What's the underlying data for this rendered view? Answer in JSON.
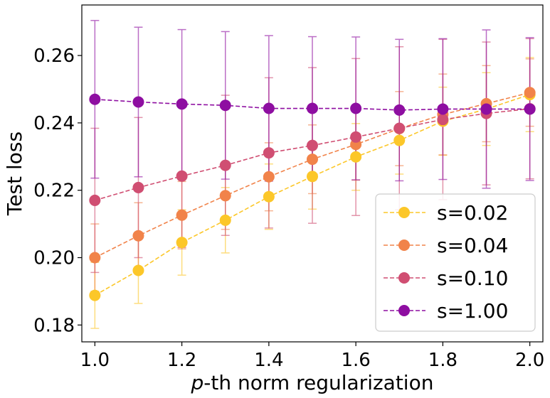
{
  "chart_data": {
    "type": "line",
    "title": "",
    "xlabel_italic": "p",
    "xlabel_rest": "-th norm regularization",
    "ylabel": "Test loss",
    "xlim": [
      0.97,
      2.03
    ],
    "ylim": [
      0.175,
      0.275
    ],
    "xticks": [
      1.0,
      1.2,
      1.4,
      1.6,
      1.8,
      2.0
    ],
    "xtick_labels": [
      "1.0",
      "1.2",
      "1.4",
      "1.6",
      "1.8",
      "2.0"
    ],
    "yticks": [
      0.18,
      0.2,
      0.22,
      0.24,
      0.26
    ],
    "ytick_labels": [
      "0.18",
      "0.20",
      "0.22",
      "0.24",
      "0.26"
    ],
    "legend_position": "lower-right",
    "x": [
      1.0,
      1.1,
      1.2,
      1.3,
      1.4,
      1.5,
      1.6,
      1.7,
      1.8,
      1.9,
      2.0
    ],
    "series": [
      {
        "name": "s=0.02",
        "color": "#fcc729",
        "values": [
          0.1888,
          0.1962,
          0.2045,
          0.2111,
          0.2181,
          0.2241,
          0.2299,
          0.2348,
          0.2405,
          0.2441,
          0.2484
        ],
        "errors": [
          0.0098,
          0.0098,
          0.0097,
          0.0097,
          0.0097,
          0.0097,
          0.0099,
          0.01,
          0.0101,
          0.0108,
          0.011
        ]
      },
      {
        "name": "s=0.04",
        "color": "#f1834a",
        "values": [
          0.2,
          0.2065,
          0.2126,
          0.2184,
          0.224,
          0.2292,
          0.2336,
          0.2383,
          0.2425,
          0.2457,
          0.249
        ],
        "errors": [
          0.01,
          0.0098,
          0.01,
          0.01,
          0.0101,
          0.0102,
          0.0106,
          0.011,
          0.012,
          0.0113,
          0.01
        ]
      },
      {
        "name": "s=0.10",
        "color": "#d04e72",
        "values": [
          0.217,
          0.2208,
          0.2242,
          0.2274,
          0.2311,
          0.2333,
          0.2358,
          0.2384,
          0.241,
          0.2428,
          0.2442
        ],
        "errors": [
          0.0214,
          0.0208,
          0.0212,
          0.0208,
          0.0223,
          0.0231,
          0.0233,
          0.0242,
          0.0238,
          0.0212,
          0.0208
        ]
      },
      {
        "name": "s=1.00",
        "color": "#8e0ea1",
        "values": [
          0.247,
          0.2462,
          0.2456,
          0.2452,
          0.2443,
          0.2443,
          0.2443,
          0.2438,
          0.2441,
          0.2441,
          0.2441
        ],
        "errors": [
          0.0234,
          0.0222,
          0.0221,
          0.0219,
          0.0216,
          0.0213,
          0.0212,
          0.021,
          0.0209,
          0.0235,
          0.0212
        ]
      }
    ]
  }
}
